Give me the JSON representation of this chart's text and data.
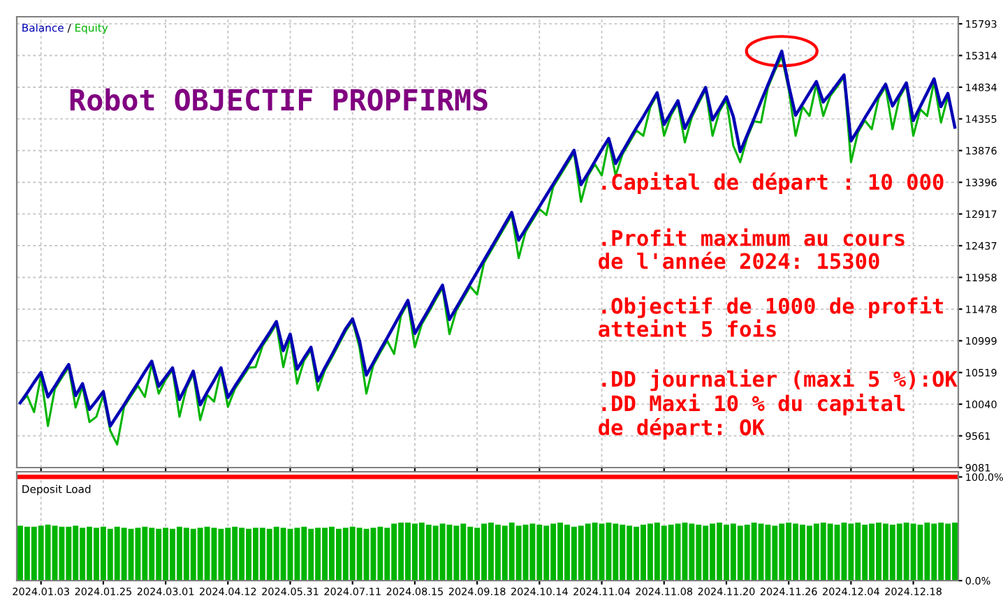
{
  "chart_data": [
    {
      "type": "line",
      "title": "Robot OBJECTIF PROPFIRMS",
      "legend": "top left",
      "grid": true,
      "tick_labels": "y",
      "categories": [
        null,
        null,
        null,
        "2024.01.03",
        null,
        null,
        null,
        null,
        null,
        null,
        null,
        null,
        "2024.01.25",
        null,
        null,
        null,
        null,
        null,
        null,
        null,
        null,
        "2024.03.01",
        null,
        null,
        null,
        null,
        null,
        null,
        null,
        null,
        "2024.04.12",
        null,
        null,
        null,
        null,
        null,
        null,
        null,
        null,
        "2024.05.31",
        null,
        null,
        null,
        null,
        null,
        null,
        null,
        null,
        "2024.07.11",
        null,
        null,
        null,
        null,
        null,
        null,
        null,
        null,
        "2024.08.15",
        null,
        null,
        null,
        null,
        null,
        null,
        null,
        null,
        "2024.09.18",
        null,
        null,
        null,
        null,
        null,
        null,
        null,
        null,
        "2024.10.14",
        null,
        null,
        null,
        null,
        null,
        null,
        null,
        null,
        "2024.11.04",
        null,
        null,
        null,
        null,
        null,
        null,
        null,
        null,
        "2024.11.08",
        null,
        null,
        null,
        null,
        null,
        null,
        null,
        null,
        "2024.11.20",
        null,
        null,
        null,
        null,
        null,
        null,
        null,
        null,
        "2024.11.26",
        null,
        null,
        null,
        null,
        null,
        null,
        null,
        null,
        "2024.12.04",
        null,
        null,
        null,
        null,
        null,
        null,
        null,
        null,
        "2024.12.18",
        null,
        null,
        null,
        null,
        null,
        null
      ],
      "ylim": [
        9081,
        15900
      ],
      "yticks": [
        9081,
        9561,
        10040,
        10519,
        10999,
        11478,
        11958,
        12437,
        12917,
        13396,
        13876,
        14355,
        14834,
        15314,
        15793
      ],
      "annotations": [
        ".Capital de départ : 10 000",
        ".Profit maximum au cours\nde l'année 2024: 15300",
        ".Objectif de 1000 de profit\natteint 5 fois",
        ".DD journalier (maxi 5 %):OK\n.DD Maxi 10 % du capital\nde départ: OK",
        "/"
      ],
      "series": [
        {
          "name": "Equity",
          "color": "#00b400",
          "values": [
            10060,
            10170,
            9920,
            10480,
            9710,
            10270,
            10440,
            10600,
            9990,
            10310,
            9770,
            9850,
            10180,
            9640,
            9430,
            10000,
            10160,
            10320,
            10150,
            10650,
            10200,
            10410,
            10560,
            9850,
            10280,
            10500,
            9800,
            10180,
            10080,
            10560,
            10000,
            10270,
            10430,
            10590,
            10600,
            10920,
            11080,
            11250,
            10600,
            11060,
            10350,
            10700,
            10860,
            10250,
            10550,
            10740,
            10940,
            11140,
            11300,
            10900,
            10200,
            10630,
            10820,
            11000,
            10800,
            11380,
            11570,
            10900,
            11250,
            11430,
            11620,
            11800,
            11100,
            11460,
            11640,
            11820,
            11700,
            12180,
            12360,
            12540,
            12720,
            12900,
            12250,
            12650,
            12820,
            12990,
            12900,
            13330,
            13500,
            13670,
            13840,
            13100,
            13490,
            13670,
            13500,
            14020,
            13500,
            13820,
            14000,
            14180,
            14100,
            14530,
            14720,
            14100,
            14410,
            14590,
            14000,
            14380,
            14590,
            14800,
            14100,
            14470,
            14650,
            13950,
            13700,
            14070,
            14320,
            14300,
            14830,
            15080,
            15300,
            14800,
            14100,
            14540,
            14400,
            14880,
            14400,
            14700,
            14840,
            14990,
            13700,
            14150,
            14330,
            14200,
            14670,
            14840,
            14200,
            14680,
            14860,
            14100,
            14500,
            14400,
            14920,
            14300,
            14700,
            null
          ]
        },
        {
          "name": "Balance",
          "color": "#0000b4",
          "values": [
            10060,
            10210,
            10370,
            10520,
            10150,
            10310,
            10480,
            10640,
            10170,
            10350,
            9960,
            10090,
            10230,
            9710,
            9870,
            10030,
            10200,
            10360,
            10530,
            10690,
            10310,
            10450,
            10590,
            10110,
            10320,
            10540,
            10030,
            10220,
            10400,
            10590,
            10140,
            10310,
            10470,
            10630,
            10800,
            10960,
            11120,
            11290,
            10850,
            11100,
            10570,
            10740,
            10900,
            10390,
            10590,
            10780,
            10980,
            11180,
            11330,
            11000,
            10480,
            10670,
            10860,
            11040,
            11230,
            11420,
            11610,
            11110,
            11290,
            11470,
            11660,
            11840,
            11320,
            11500,
            11680,
            11860,
            12040,
            12220,
            12400,
            12580,
            12760,
            12940,
            12520,
            12690,
            12860,
            13030,
            13200,
            13370,
            13540,
            13710,
            13880,
            13360,
            13530,
            13710,
            13890,
            14060,
            13680,
            13860,
            14040,
            14220,
            14390,
            14570,
            14750,
            14270,
            14450,
            14630,
            14210,
            14420,
            14630,
            14830,
            14340,
            14510,
            14690,
            14390,
            13860,
            14110,
            14360,
            14620,
            14870,
            15120,
            15380,
            14860,
            14410,
            14580,
            14750,
            14920,
            14610,
            14740,
            14880,
            15020,
            14020,
            14190,
            14370,
            14540,
            14710,
            14880,
            14550,
            14720,
            14900,
            14330,
            14540,
            14750,
            14960,
            14540,
            14740,
            14230
          ]
        }
      ]
    },
    {
      "type": "bar",
      "legend": "top left",
      "grid": "x",
      "categories": [
        null,
        null,
        null,
        "2024.01.03",
        null,
        null,
        null,
        null,
        null,
        null,
        null,
        null,
        "2024.01.25",
        null,
        null,
        null,
        null,
        null,
        null,
        null,
        null,
        "2024.03.01",
        null,
        null,
        null,
        null,
        null,
        null,
        null,
        null,
        "2024.04.12",
        null,
        null,
        null,
        null,
        null,
        null,
        null,
        null,
        "2024.05.31",
        null,
        null,
        null,
        null,
        null,
        null,
        null,
        null,
        "2024.07.11",
        null,
        null,
        null,
        null,
        null,
        null,
        null,
        null,
        "2024.08.15",
        null,
        null,
        null,
        null,
        null,
        null,
        null,
        null,
        "2024.09.18",
        null,
        null,
        null,
        null,
        null,
        null,
        null,
        null,
        "2024.10.14",
        null,
        null,
        null,
        null,
        null,
        null,
        null,
        null,
        "2024.11.04",
        null,
        null,
        null,
        null,
        null,
        null,
        null,
        null,
        "2024.11.08",
        null,
        null,
        null,
        null,
        null,
        null,
        null,
        null,
        "2024.11.20",
        null,
        null,
        null,
        null,
        null,
        null,
        null,
        null,
        "2024.11.26",
        null,
        null,
        null,
        null,
        null,
        null,
        null,
        null,
        "2024.12.04",
        null,
        null,
        null,
        null,
        null,
        null,
        null,
        null,
        "2024.12.18",
        null,
        null,
        null,
        null,
        null,
        null
      ],
      "ylim": [
        0,
        105
      ],
      "yticks": [
        {
          "value": 0,
          "label": "0.0%"
        },
        {
          "value": 100,
          "label": "100.0%"
        }
      ],
      "ref_lines": [
        {
          "axis": "y",
          "value": 100,
          "color": "#ff0000"
        }
      ],
      "series": [
        {
          "name": "Deposit Load",
          "color": "#00b400",
          "values": [
            53,
            52,
            52,
            53,
            54,
            53,
            52,
            52,
            53,
            51,
            52,
            51,
            52,
            50,
            52,
            51,
            50,
            51,
            52,
            51,
            50,
            51,
            50,
            52,
            51,
            50,
            51,
            52,
            51,
            50,
            51,
            52,
            51,
            50,
            51,
            51,
            50,
            52,
            51,
            50,
            51,
            52,
            50,
            51,
            51,
            52,
            50,
            51,
            52,
            51,
            50,
            51,
            52,
            51,
            55,
            56,
            56,
            55,
            56,
            54,
            53,
            55,
            54,
            53,
            55,
            52,
            51,
            55,
            56,
            54,
            53,
            56,
            53,
            54,
            55,
            54,
            53,
            55,
            56,
            54,
            52,
            53,
            55,
            56,
            55,
            56,
            55,
            54,
            53,
            52,
            54,
            55,
            56,
            53,
            54,
            55,
            56,
            55,
            54,
            53,
            55,
            56,
            54,
            55,
            53,
            54,
            56,
            55,
            54,
            53,
            55,
            56,
            55,
            54,
            53,
            55,
            56,
            55,
            54,
            56,
            55,
            56,
            54,
            55,
            56,
            55,
            54,
            55,
            56,
            55,
            54,
            56,
            55,
            56,
            55,
            56
          ]
        }
      ]
    }
  ]
}
